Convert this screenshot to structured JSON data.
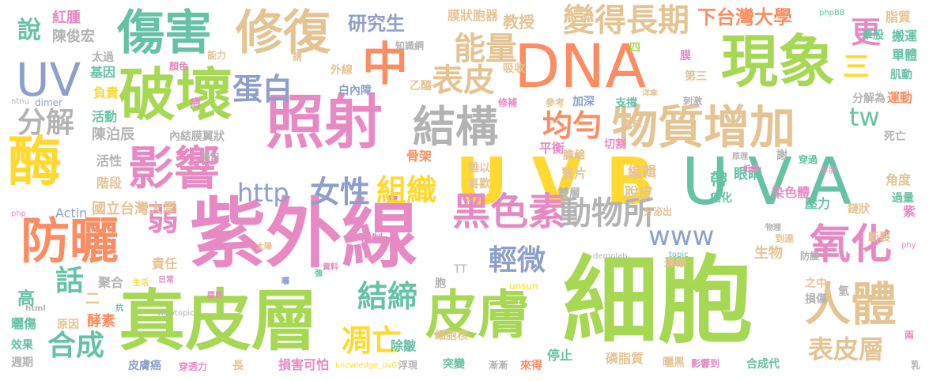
{
  "palette": {
    "red": "#e78ac3",
    "pink": "#e78ac3",
    "green": "#a6d854",
    "tan": "#e5c494",
    "orange": "#fc8d62",
    "yellow": "#ffd92f",
    "teal": "#66c2a5",
    "blue": "#8da0cb",
    "gray": "#b3b3b3"
  },
  "words": [
    {
      "text": "細胞",
      "color": "green"
    },
    {
      "text": "紫外線",
      "color": "pink"
    },
    {
      "text": "UVB",
      "color": "yellow"
    },
    {
      "text": "DNA",
      "color": "orange"
    },
    {
      "text": "UVA",
      "color": "teal"
    },
    {
      "text": "真皮層",
      "color": "green"
    },
    {
      "text": "破壞",
      "color": "green"
    },
    {
      "text": "照射",
      "color": "pink"
    },
    {
      "text": "現象",
      "color": "green"
    },
    {
      "text": "傷害",
      "color": "teal"
    },
    {
      "text": "修復",
      "color": "tan"
    },
    {
      "text": "皮膚",
      "color": "green"
    },
    {
      "text": "防曬",
      "color": "orange"
    },
    {
      "text": "影響",
      "color": "pink"
    },
    {
      "text": "物質增加",
      "color": "tan"
    },
    {
      "text": "結構",
      "color": "gray"
    },
    {
      "text": "酶",
      "color": "yellow"
    },
    {
      "text": "UV",
      "color": "blue"
    },
    {
      "text": "中",
      "color": "orange"
    },
    {
      "text": "黑色素",
      "color": "pink"
    },
    {
      "text": "氧化",
      "color": "pink"
    },
    {
      "text": "人體",
      "color": "tan"
    },
    {
      "text": "變得長期",
      "color": "tan"
    },
    {
      "text": "能量",
      "color": "tan"
    },
    {
      "text": "表皮層",
      "color": "tan"
    },
    {
      "text": "動物所",
      "color": "gray"
    },
    {
      "text": "均勻",
      "color": "orange"
    },
    {
      "text": "表皮",
      "color": "tan"
    },
    {
      "text": "蛋白",
      "color": "blue"
    },
    {
      "text": "http",
      "color": "blue"
    },
    {
      "text": "女性",
      "color": "blue"
    },
    {
      "text": "組織",
      "color": "yellow"
    },
    {
      "text": "結締",
      "color": "teal"
    },
    {
      "text": "凋亡",
      "color": "yellow"
    },
    {
      "text": "輕微",
      "color": "blue"
    },
    {
      "text": "合成",
      "color": "teal"
    },
    {
      "text": "弱",
      "color": "pink"
    },
    {
      "text": "話",
      "color": "teal"
    },
    {
      "text": "www",
      "color": "blue"
    },
    {
      "text": "下台灣大學",
      "color": "orange"
    },
    {
      "text": "更",
      "color": "pink"
    },
    {
      "text": "三",
      "color": "yellow"
    },
    {
      "text": "tw",
      "color": "teal"
    },
    {
      "text": "分解",
      "color": "gray"
    },
    {
      "text": "研究生",
      "color": "blue"
    },
    {
      "text": "說",
      "color": "teal"
    },
    {
      "text": "紅腫",
      "color": "pink"
    },
    {
      "text": "陳俊宏",
      "color": "gray"
    },
    {
      "text": "膜狀胞器",
      "color": "tan"
    },
    {
      "text": "教授",
      "color": "tan"
    },
    {
      "text": "太過",
      "color": "gray"
    },
    {
      "text": "基因",
      "color": "teal"
    },
    {
      "text": "負責",
      "color": "yellow"
    },
    {
      "text": "活動",
      "color": "teal"
    },
    {
      "text": "陳泊辰",
      "color": "gray"
    },
    {
      "text": "活性",
      "color": "gray"
    },
    {
      "text": "階段",
      "color": "tan"
    },
    {
      "text": "國立台灣大學",
      "color": "tan"
    },
    {
      "text": "Actin",
      "color": "blue"
    },
    {
      "text": "責任",
      "color": "tan"
    },
    {
      "text": "聚合",
      "color": "gray"
    },
    {
      "text": "高",
      "color": "teal"
    },
    {
      "text": "二",
      "color": "tan"
    },
    {
      "text": "曬傷",
      "color": "teal"
    },
    {
      "text": "原因",
      "color": "tan"
    },
    {
      "text": "酵素",
      "color": "orange"
    },
    {
      "text": "效果",
      "color": "teal"
    },
    {
      "text": "週期",
      "color": "gray"
    },
    {
      "text": "皮膚癌",
      "color": "blue"
    },
    {
      "text": "穿透力",
      "color": "pink"
    },
    {
      "text": "長",
      "color": "tan"
    },
    {
      "text": "損害可怕",
      "color": "pink"
    },
    {
      "text": "浮現",
      "color": "gray"
    },
    {
      "text": "突變",
      "color": "teal"
    },
    {
      "text": "漸漸",
      "color": "gray"
    },
    {
      "text": "來得",
      "color": "orange"
    },
    {
      "text": "停止",
      "color": "teal"
    },
    {
      "text": "磷脂質",
      "color": "tan"
    },
    {
      "text": "曬黑",
      "color": "tan"
    },
    {
      "text": "影響到",
      "color": "pink"
    },
    {
      "text": "合成代",
      "color": "teal"
    },
    {
      "text": "乳",
      "color": "gray"
    },
    {
      "text": "除皺",
      "color": "teal"
    },
    {
      "text": "細胞核",
      "color": "tan"
    },
    {
      "text": "胞",
      "color": "gray"
    },
    {
      "text": "TT",
      "color": "gray"
    },
    {
      "text": "unsun",
      "color": "yellow"
    },
    {
      "text": "內結膜翼狀",
      "color": "gray"
    },
    {
      "text": "美白",
      "color": "gray"
    },
    {
      "text": "骨架",
      "color": "orange"
    },
    {
      "text": "平衡",
      "color": "pink"
    },
    {
      "text": "膽鹼",
      "color": "tan"
    },
    {
      "text": "切割",
      "color": "pink"
    },
    {
      "text": "難以",
      "color": "tan"
    },
    {
      "text": "喜歡",
      "color": "tan"
    },
    {
      "text": "贅片",
      "color": "tan"
    },
    {
      "text": "編輯",
      "color": "tan"
    },
    {
      "text": "脫皮",
      "color": "tan"
    },
    {
      "text": "眼睛",
      "color": "teal"
    },
    {
      "text": "帶",
      "color": "teal"
    },
    {
      "text": "壓力",
      "color": "teal"
    },
    {
      "text": "染色體",
      "color": "pink"
    },
    {
      "text": "癌化",
      "color": "teal"
    },
    {
      "text": "雙層",
      "color": "gray"
    },
    {
      "text": "機制",
      "color": "pink"
    },
    {
      "text": "分泌出",
      "color": "tan"
    },
    {
      "text": "運輸",
      "color": "tan"
    },
    {
      "text": "生物",
      "color": "tan"
    },
    {
      "text": "鏈狀",
      "color": "tan"
    },
    {
      "text": "斷裂",
      "color": "tan"
    },
    {
      "text": "紫",
      "color": "pink"
    },
    {
      "text": "角度",
      "color": "tan"
    },
    {
      "text": "過量",
      "color": "teal"
    },
    {
      "text": "死亡",
      "color": "gray"
    },
    {
      "text": "運動",
      "color": "orange"
    },
    {
      "text": "分解為",
      "color": "gray"
    },
    {
      "text": "肌動",
      "color": "teal"
    },
    {
      "text": "單體",
      "color": "teal"
    },
    {
      "text": "搬運",
      "color": "teal"
    },
    {
      "text": "單股",
      "color": "teal"
    },
    {
      "text": "脂質",
      "color": "tan"
    },
    {
      "text": "phpBB",
      "color": "teal"
    },
    {
      "text": "第三",
      "color": "tan"
    },
    {
      "text": "膜",
      "color": "pink"
    },
    {
      "text": "四",
      "color": "green"
    },
    {
      "text": "顏色",
      "color": "pink"
    },
    {
      "text": "能力",
      "color": "tan"
    },
    {
      "text": "請",
      "color": "tan"
    },
    {
      "text": "外線",
      "color": "tan"
    },
    {
      "text": "白內障",
      "color": "blue"
    },
    {
      "text": "乙醯",
      "color": "tan"
    },
    {
      "text": "吸收",
      "color": "tan"
    },
    {
      "text": "知識網",
      "color": "gray"
    },
    {
      "text": "修補",
      "color": "pink"
    },
    {
      "text": "參考",
      "color": "tan"
    },
    {
      "text": "加深",
      "color": "blue"
    },
    {
      "text": "支撐",
      "color": "teal"
    },
    {
      "text": "皺紋",
      "color": "tan"
    },
    {
      "text": "洋傘",
      "color": "tan"
    },
    {
      "text": "刺激",
      "color": "gray"
    },
    {
      "text": "謝",
      "color": "gray"
    },
    {
      "text": "原理",
      "color": "gray"
    },
    {
      "text": "穿過",
      "color": "teal"
    },
    {
      "text": "物理",
      "color": "gray"
    },
    {
      "text": "到達",
      "color": "tan"
    },
    {
      "text": "防護",
      "color": "gray"
    },
    {
      "text": "之中",
      "color": "tan"
    },
    {
      "text": "損傷",
      "color": "gray"
    },
    {
      "text": "氫",
      "color": "gray"
    },
    {
      "text": "兩",
      "color": "pink"
    },
    {
      "text": "phy",
      "color": "pink"
    },
    {
      "text": "php",
      "color": "pink"
    },
    {
      "text": "ntnu",
      "color": "gray"
    },
    {
      "text": "dimer",
      "color": "blue"
    },
    {
      "text": "疤",
      "color": "pink"
    },
    {
      "text": "曬",
      "color": "blue"
    },
    {
      "text": "強",
      "color": "teal"
    },
    {
      "text": "資料",
      "color": "pink"
    },
    {
      "text": "太陽",
      "color": "tan"
    },
    {
      "text": "膠原",
      "color": "pink"
    },
    {
      "text": "日常",
      "color": "pink"
    },
    {
      "text": "生活",
      "color": "yellow"
    },
    {
      "text": "抗",
      "color": "teal"
    },
    {
      "text": "html",
      "color": "gray"
    },
    {
      "text": "viewtopic",
      "color": "gray"
    },
    {
      "text": "knowledge_uv01",
      "color": "yellow"
    },
    {
      "text": "demolab",
      "color": "gray"
    },
    {
      "text": "topic",
      "color": "teal"
    },
    {
      "text": "參閱",
      "color": "pink"
    },
    {
      "text": "抵擋",
      "color": "pink"
    }
  ]
}
